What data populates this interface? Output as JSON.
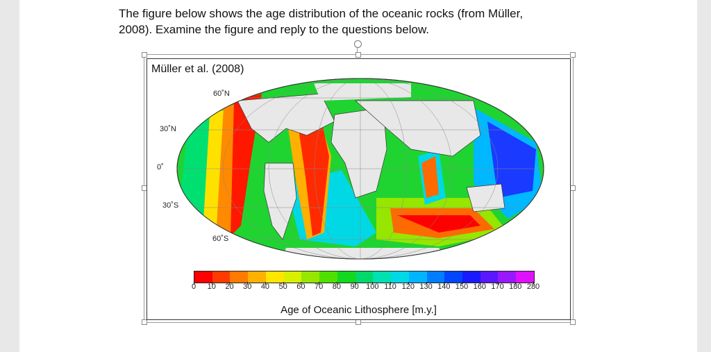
{
  "document": {
    "paragraph_line1": "The figure below shows the age distribution of the oceanic rocks (from Müller,",
    "paragraph_line2": "2008). Examine the figure and reply to the questions below."
  },
  "figure": {
    "title": "Müller  et al. (2008)",
    "lat_labels": {
      "n60": "60˚N",
      "n30": "30˚N",
      "eq": "0˚",
      "s30": "30˚S",
      "s60": "60˚S"
    },
    "colorbar": {
      "ticks": [
        "0",
        "10",
        "20",
        "30",
        "40",
        "50",
        "60",
        "70",
        "80",
        "90",
        "100",
        "110",
        "120",
        "130",
        "140",
        "150",
        "160",
        "170",
        "180",
        "280"
      ],
      "label": "Age of Oceanic Lithosphere [m.y.]",
      "colors": [
        "#ff0000",
        "#ff3a00",
        "#ff7a00",
        "#ffb000",
        "#ffe600",
        "#d8f000",
        "#96e600",
        "#4fe000",
        "#12d81e",
        "#00d86a",
        "#00e0b0",
        "#00d8e6",
        "#00b4ff",
        "#007cff",
        "#0046ff",
        "#1a1aff",
        "#5a18ff",
        "#9a18ff",
        "#e010ff"
      ]
    }
  }
}
